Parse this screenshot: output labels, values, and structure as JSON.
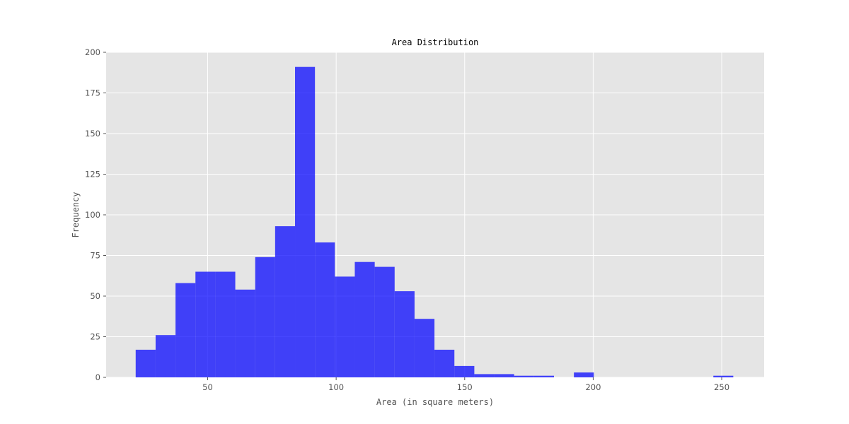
{
  "chart_data": {
    "type": "bar",
    "title": "Area Distribution",
    "xlabel": "Area (in square meters)",
    "ylabel": "Frequency",
    "xlim": [
      10.5,
      266.5
    ],
    "ylim": [
      0,
      200
    ],
    "xticks": [
      50,
      100,
      150,
      200,
      250
    ],
    "yticks": [
      0,
      25,
      50,
      75,
      100,
      125,
      150,
      175,
      200
    ],
    "grid": true,
    "bins": {
      "start": 22.0,
      "width": 7.75,
      "counts": [
        17,
        26,
        58,
        65,
        65,
        54,
        74,
        93,
        191,
        83,
        62,
        71,
        68,
        53,
        36,
        17,
        7,
        2,
        2,
        1,
        1,
        0,
        3,
        0,
        0,
        0,
        0,
        0,
        0,
        1
      ]
    },
    "colors": {
      "bar": "#0000ff",
      "bar_opacity": 0.72,
      "plot_background": "#e5e5e5",
      "grid": "#ffffff",
      "tick_mark": "#555555"
    }
  }
}
